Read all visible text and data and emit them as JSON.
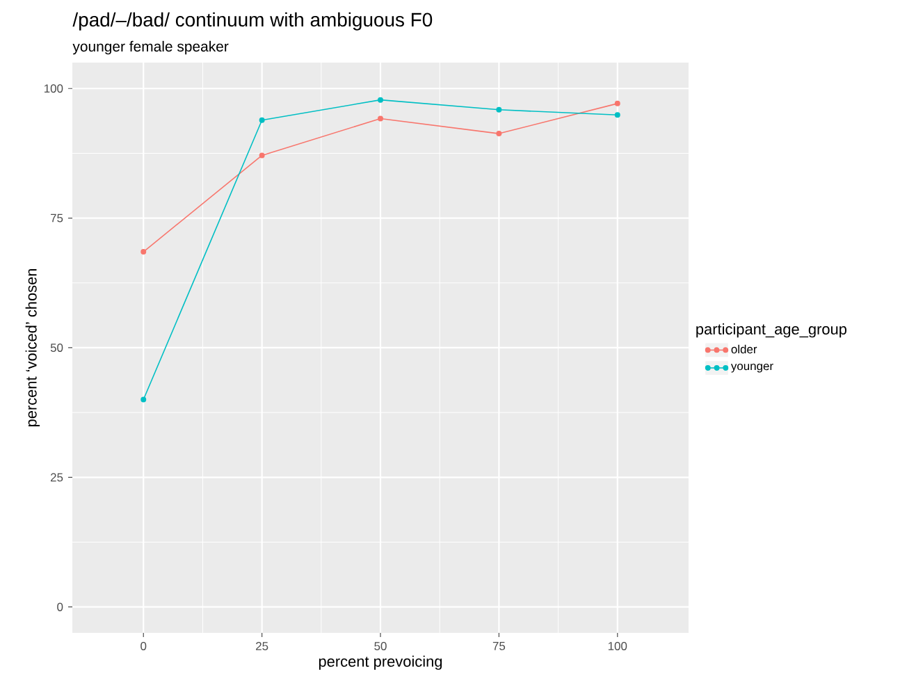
{
  "chart_data": {
    "type": "line",
    "title": "/pad/–/bad/ continuum with ambiguous F0",
    "subtitle": "younger female speaker",
    "xlabel": "percent prevoicing",
    "ylabel": "percent ‘voiced’ chosen",
    "legend_title": "participant_age_group",
    "x": [
      0,
      25,
      50,
      75,
      100
    ],
    "series": [
      {
        "name": "older",
        "color": "#f8766d",
        "values": [
          68.5,
          87.1,
          94.2,
          91.3,
          97.1
        ]
      },
      {
        "name": "younger",
        "color": "#00bfc4",
        "values": [
          40.0,
          93.9,
          97.8,
          95.9,
          94.9
        ]
      }
    ],
    "xlim": [
      -15,
      115
    ],
    "ylim": [
      -5,
      105
    ],
    "xticks": [
      0,
      25,
      50,
      75,
      100
    ],
    "yticks": [
      0,
      25,
      50,
      75,
      100
    ],
    "grid": true,
    "legend": "right",
    "marker": "circle",
    "line_style": "solid"
  }
}
